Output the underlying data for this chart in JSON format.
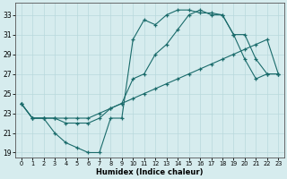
{
  "title": "",
  "xlabel": "Humidex (Indice chaleur)",
  "xlim": [
    -0.5,
    23.5
  ],
  "ylim": [
    18.5,
    34.2
  ],
  "yticks": [
    19,
    21,
    23,
    25,
    27,
    29,
    31,
    33
  ],
  "xticks": [
    0,
    1,
    2,
    3,
    4,
    5,
    6,
    7,
    8,
    9,
    10,
    11,
    12,
    13,
    14,
    15,
    16,
    17,
    18,
    19,
    20,
    21,
    22,
    23
  ],
  "bg_color": "#d6ecee",
  "grid_color": "#b8d8dc",
  "line_color": "#1a6b6b",
  "lx1": [
    0,
    1,
    2,
    3,
    4,
    5,
    6,
    7,
    8,
    9,
    10,
    11,
    12,
    13,
    14,
    15,
    16,
    17,
    18,
    19,
    20,
    21,
    22,
    23
  ],
  "ly1": [
    24.0,
    22.5,
    22.5,
    21.0,
    20.0,
    19.5,
    19.0,
    19.0,
    22.5,
    22.5,
    30.5,
    32.5,
    32.0,
    33.0,
    33.5,
    33.5,
    33.2,
    33.2,
    33.0,
    31.0,
    28.5,
    26.5,
    27.0,
    27.0
  ],
  "lx2": [
    0,
    1,
    2,
    3,
    4,
    5,
    6,
    7,
    8,
    9,
    10,
    11,
    12,
    13,
    14,
    15,
    16,
    17,
    18,
    19,
    20,
    21,
    22,
    23
  ],
  "ly2": [
    24.0,
    22.5,
    22.5,
    22.5,
    22.0,
    22.0,
    22.0,
    22.5,
    23.5,
    24.0,
    26.5,
    27.0,
    29.0,
    30.0,
    31.5,
    33.0,
    33.5,
    33.0,
    33.0,
    31.0,
    31.0,
    28.5,
    27.0,
    27.0
  ],
  "lx3": [
    0,
    1,
    2,
    3,
    4,
    5,
    6,
    7,
    8,
    9,
    10,
    11,
    12,
    13,
    14,
    15,
    16,
    17,
    18,
    19,
    20,
    21,
    22,
    23
  ],
  "ly3": [
    24.0,
    22.5,
    22.5,
    22.5,
    22.5,
    22.5,
    22.5,
    23.0,
    23.5,
    24.0,
    24.5,
    25.0,
    25.5,
    26.0,
    26.5,
    27.0,
    27.5,
    28.0,
    28.5,
    29.0,
    29.5,
    30.0,
    30.5,
    27.0
  ]
}
